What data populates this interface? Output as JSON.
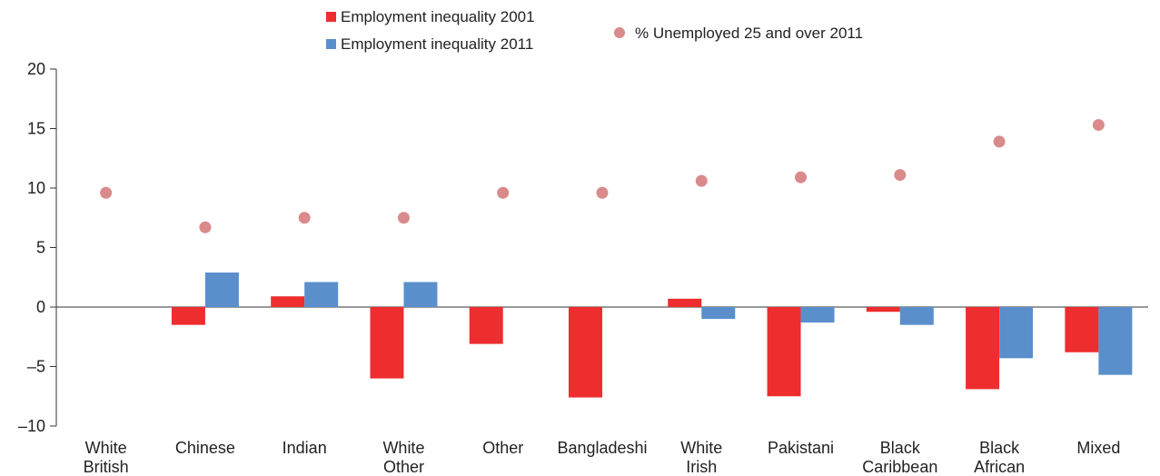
{
  "chart_data": {
    "type": "bar",
    "categories": [
      [
        "White",
        "British"
      ],
      [
        "Chinese"
      ],
      [
        "Indian"
      ],
      [
        "White",
        "Other"
      ],
      [
        "Other"
      ],
      [
        "Bangladeshi"
      ],
      [
        "White",
        "Irish"
      ],
      [
        "Pakistani"
      ],
      [
        "Black",
        "Caribbean"
      ],
      [
        "Black",
        "African"
      ],
      [
        "Mixed"
      ]
    ],
    "series": [
      {
        "name": "Employment inequality 2001",
        "kind": "bar",
        "color": "#ee2d2f",
        "values": [
          0,
          -1.5,
          0.9,
          -6.0,
          -3.1,
          -7.6,
          0.7,
          -7.5,
          -0.4,
          -6.9,
          -3.8
        ]
      },
      {
        "name": "Employment inequality 2011",
        "kind": "bar",
        "color": "#5a8fcc",
        "values": [
          0,
          2.9,
          2.1,
          2.1,
          0,
          0,
          -1.0,
          -1.3,
          -1.5,
          -4.3,
          -5.7
        ]
      },
      {
        "name": "% Unemployed 25 and over 2011",
        "kind": "scatter",
        "color": "#d98a8a",
        "values": [
          9.6,
          6.7,
          7.5,
          7.5,
          9.6,
          9.6,
          10.6,
          10.9,
          11.1,
          13.9,
          15.3
        ]
      }
    ],
    "ylim": [
      -10,
      20
    ],
    "yticks": [
      "20",
      "15",
      "10",
      "5",
      "0",
      "–5",
      "–10"
    ],
    "legend_position": "top-center",
    "grid": false
  }
}
